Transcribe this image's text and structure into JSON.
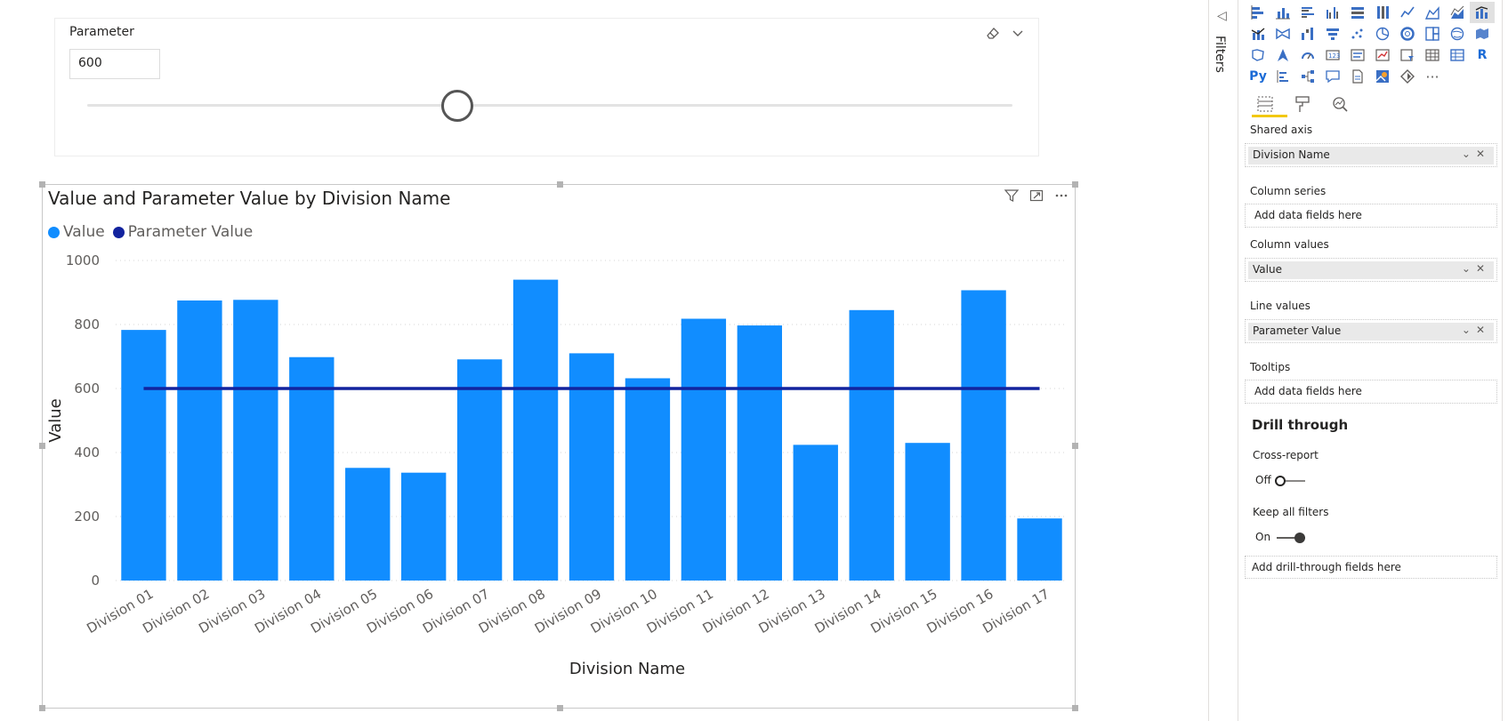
{
  "slicer": {
    "title": "Parameter",
    "value": "600",
    "slider_fraction": 0.4
  },
  "visual": {
    "title": "Value and Parameter Value by Division Name"
  },
  "chart_data": {
    "type": "bar",
    "title": "Value and Parameter Value by Division Name",
    "xlabel": "Division Name",
    "ylabel": "Value",
    "ylim": [
      0,
      1000
    ],
    "yticks": [
      0,
      200,
      400,
      600,
      800,
      1000
    ],
    "grid": true,
    "legend_position": "top-left",
    "categories": [
      "Division 01",
      "Division 02",
      "Division 03",
      "Division 04",
      "Division 05",
      "Division 06",
      "Division 07",
      "Division 08",
      "Division 09",
      "Division 10",
      "Division 11",
      "Division 12",
      "Division 13",
      "Division 14",
      "Division 15",
      "Division 16",
      "Division 17"
    ],
    "series": [
      {
        "name": "Value",
        "type": "bar",
        "color": "#118dff",
        "values": [
          783,
          875,
          877,
          698,
          352,
          337,
          691,
          940,
          710,
          632,
          818,
          797,
          424,
          845,
          430,
          907,
          194
        ]
      },
      {
        "name": "Parameter Value",
        "type": "line",
        "color": "#12239e",
        "values": [
          600,
          600,
          600,
          600,
          600,
          600,
          600,
          600,
          600,
          600,
          600,
          600,
          600,
          600,
          600,
          600,
          600
        ]
      }
    ]
  },
  "filters_pane": {
    "label": "Filters"
  },
  "viz_pane": {
    "wells": [
      {
        "label": "Shared axis",
        "field": "Division Name"
      },
      {
        "label": "Column series",
        "placeholder": "Add data fields here"
      },
      {
        "label": "Column values",
        "field": "Value"
      },
      {
        "label": "Line values",
        "field": "Parameter Value"
      },
      {
        "label": "Tooltips",
        "placeholder": "Add data fields here"
      }
    ],
    "drill_through": {
      "title": "Drill through",
      "cross_report_label": "Cross-report",
      "cross_report_state": "Off",
      "keep_filters_label": "Keep all filters",
      "keep_filters_state": "On",
      "drill_placeholder": "Add drill-through fields here"
    },
    "icon_text": {
      "r": "R",
      "py": "Py",
      "more": "···"
    }
  }
}
